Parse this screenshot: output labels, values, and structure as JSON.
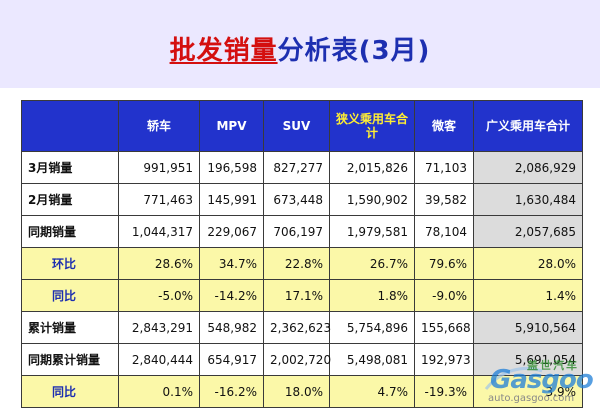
{
  "title": {
    "part1": "批发销量",
    "part2": "分析表(3月)"
  },
  "table": {
    "headers": [
      "轿车",
      "MPV",
      "SUV",
      "狭义乘用车合计",
      "微客",
      "广义乘用车合计"
    ],
    "rows": [
      {
        "label": "3月销量",
        "values": [
          "991,951",
          "196,598",
          "827,277",
          "2,015,826",
          "71,103",
          "2,086,929"
        ]
      },
      {
        "label": "2月销量",
        "values": [
          "771,463",
          "145,991",
          "673,448",
          "1,590,902",
          "39,582",
          "1,630,484"
        ]
      },
      {
        "label": "同期销量",
        "values": [
          "1,044,317",
          "229,067",
          "706,197",
          "1,979,581",
          "78,104",
          "2,057,685"
        ]
      },
      {
        "label": "环比",
        "values": [
          "28.6%",
          "34.7%",
          "22.8%",
          "26.7%",
          "79.6%",
          "28.0%"
        ]
      },
      {
        "label": "同比",
        "values": [
          "-5.0%",
          "-14.2%",
          "17.1%",
          "1.8%",
          "-9.0%",
          "1.4%"
        ]
      },
      {
        "label": "累计销量",
        "values": [
          "2,843,291",
          "548,982",
          "2,362,623",
          "5,754,896",
          "155,668",
          "5,910,564"
        ]
      },
      {
        "label": "同期累计销量",
        "values": [
          "2,840,444",
          "654,917",
          "2,002,720",
          "5,498,081",
          "192,973",
          "5,691,054"
        ]
      },
      {
        "label": "同比",
        "values": [
          "0.1%",
          "-16.2%",
          "18.0%",
          "4.7%",
          "-19.3%",
          "3.9%"
        ]
      }
    ]
  },
  "colors": {
    "positive": "#e01e1e",
    "negative": "#129a12",
    "header_bg": "#2233cc",
    "highlight_row": "#fbf8a8"
  },
  "watermark": {
    "brand": "Gasgoo",
    "cn": "盖世汽车",
    "url": "auto.gasgoo.com"
  }
}
